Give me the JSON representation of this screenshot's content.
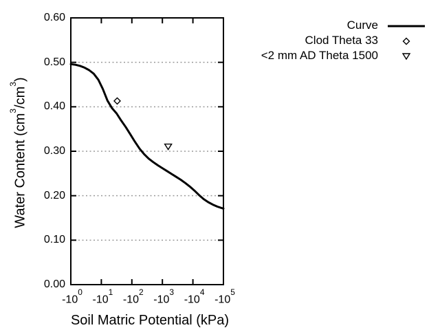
{
  "colors": {
    "background": "#ffffff",
    "foreground": "#000000",
    "grid": "#999999",
    "marker_fill": "#ffffff"
  },
  "chart_data": {
    "type": "line",
    "title": "",
    "xlabel": "Soil Matric Potential (kPa)",
    "ylabel_segments": [
      {
        "t": "text",
        "v": "Water Content (cm"
      },
      {
        "t": "sup",
        "v": "3"
      },
      {
        "t": "text",
        "v": "/cm"
      },
      {
        "t": "sup",
        "v": "3"
      },
      {
        "t": "text",
        "v": ")"
      }
    ],
    "x_scale": "log10 of negative kPa",
    "xlim_log": [
      0,
      5
    ],
    "ylim": [
      0.0,
      0.6
    ],
    "grid": "horizontal dotted gridlines at y ticks",
    "legend_position": "outside top-right",
    "x_ticks": [
      {
        "mantissa": "-10",
        "exp": "0",
        "log": 0
      },
      {
        "mantissa": "-10",
        "exp": "1",
        "log": 1
      },
      {
        "mantissa": "-10",
        "exp": "2",
        "log": 2
      },
      {
        "mantissa": "-10",
        "exp": "3",
        "log": 3
      },
      {
        "mantissa": "-10",
        "exp": "4",
        "log": 4
      },
      {
        "mantissa": "-10",
        "exp": "5",
        "log": 5
      }
    ],
    "y_ticks": [
      {
        "label": "0.00",
        "value": 0.0
      },
      {
        "label": "0.10",
        "value": 0.1
      },
      {
        "label": "0.20",
        "value": 0.2
      },
      {
        "label": "0.30",
        "value": 0.3
      },
      {
        "label": "0.40",
        "value": 0.4
      },
      {
        "label": "0.50",
        "value": 0.5
      },
      {
        "label": "0.60",
        "value": 0.6
      }
    ],
    "series": [
      {
        "name": "Curve",
        "type": "line",
        "marker": "none",
        "points_log_theta": [
          [
            0.0,
            0.496
          ],
          [
            0.15,
            0.4945
          ],
          [
            0.3,
            0.492
          ],
          [
            0.45,
            0.488
          ],
          [
            0.6,
            0.4825
          ],
          [
            0.75,
            0.4745
          ],
          [
            0.9,
            0.461
          ],
          [
            1.05,
            0.44
          ],
          [
            1.2,
            0.414
          ],
          [
            1.35,
            0.397
          ],
          [
            1.5,
            0.385
          ],
          [
            1.65,
            0.369
          ],
          [
            1.8,
            0.3545
          ],
          [
            1.95,
            0.338
          ],
          [
            2.1,
            0.3215
          ],
          [
            2.25,
            0.306
          ],
          [
            2.4,
            0.2935
          ],
          [
            2.55,
            0.2835
          ],
          [
            2.7,
            0.2755
          ],
          [
            2.85,
            0.2685
          ],
          [
            3.0,
            0.262
          ],
          [
            3.15,
            0.2555
          ],
          [
            3.3,
            0.249
          ],
          [
            3.45,
            0.2425
          ],
          [
            3.6,
            0.236
          ],
          [
            3.75,
            0.2285
          ],
          [
            3.9,
            0.2205
          ],
          [
            4.05,
            0.2115
          ],
          [
            4.2,
            0.2015
          ],
          [
            4.35,
            0.1925
          ],
          [
            4.5,
            0.1855
          ],
          [
            4.65,
            0.18
          ],
          [
            4.8,
            0.1755
          ],
          [
            5.0,
            0.171
          ]
        ]
      },
      {
        "name": "Clod Theta 33",
        "type": "scatter",
        "marker": "diamond-open",
        "points_kpa_theta": [
          [
            -33,
            0.41
          ]
        ],
        "points_log_theta": [
          [
            1.52,
            0.413
          ]
        ]
      },
      {
        "name": "<2 mm AD Theta 1500",
        "type": "scatter",
        "marker": "triangle-down-open",
        "points_kpa_theta": [
          [
            -1500,
            0.31
          ]
        ],
        "points_log_theta": [
          [
            3.19,
            0.31
          ]
        ]
      }
    ]
  }
}
